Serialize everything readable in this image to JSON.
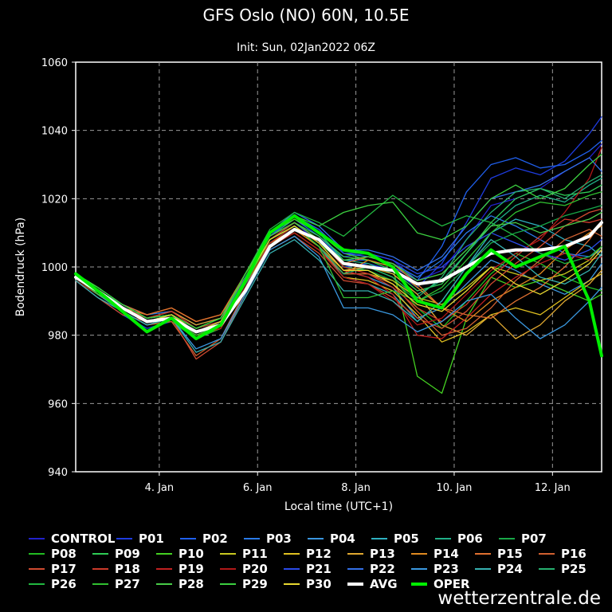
{
  "chart_data": {
    "type": "line",
    "title": "GFS Oslo (NO) 60N, 10.5E",
    "subtitle": "Init: Sun, 02Jan2022 06Z",
    "xlabel": "Local time (UTC+1)",
    "ylabel": "Bodendruck (hPa)",
    "ylim": [
      940,
      1060
    ],
    "yticks": [
      940,
      960,
      980,
      1000,
      1020,
      1040,
      1060
    ],
    "xlim": [
      2.3,
      13.0
    ],
    "xticks": [
      {
        "x": 4,
        "label": "4. Jan"
      },
      {
        "x": 6,
        "label": "6. Jan"
      },
      {
        "x": 8,
        "label": "8. Jan"
      },
      {
        "x": 10,
        "label": "10. Jan"
      },
      {
        "x": 12,
        "label": "12. Jan"
      }
    ],
    "grid": true,
    "x": [
      2.3,
      2.75,
      3.25,
      3.75,
      4.25,
      4.75,
      5.25,
      5.75,
      6.25,
      6.75,
      7.25,
      7.75,
      8.25,
      8.75,
      9.25,
      9.75,
      10.25,
      10.75,
      11.25,
      11.75,
      12.25,
      12.75,
      13.0
    ],
    "avg": {
      "name": "AVG",
      "color": "#ffffff",
      "values": [
        997,
        993,
        988,
        984,
        985,
        981,
        983,
        993,
        1006,
        1011,
        1008,
        1001,
        1000,
        999,
        995,
        996,
        1000,
        1004,
        1005,
        1005,
        1006,
        1009,
        1013
      ]
    },
    "oper": {
      "name": "OPER",
      "color": "#00ee00",
      "values": [
        998,
        993,
        987,
        981,
        985,
        979,
        983,
        996,
        1010,
        1015,
        1010,
        1005,
        1004,
        1000,
        990,
        988,
        998,
        1005,
        1000,
        1003,
        1006,
        990,
        974
      ]
    },
    "series": [
      {
        "name": "CONTROL",
        "color": "#2222cc",
        "values": [
          997,
          992,
          987,
          983,
          985,
          980,
          983,
          997,
          1009,
          1013,
          1007,
          1003,
          1004,
          1002,
          996,
          999,
          1008,
          1018,
          1020,
          1023,
          1028,
          1032,
          1036
        ]
      },
      {
        "name": "P01",
        "color": "#1e3ce0",
        "values": [
          996,
          991,
          986,
          982,
          984,
          979,
          982,
          994,
          1008,
          1013,
          1008,
          1000,
          1001,
          999,
          994,
          1001,
          1013,
          1026,
          1029,
          1027,
          1031,
          1039,
          1044
        ]
      },
      {
        "name": "P02",
        "color": "#2060ee",
        "values": [
          997,
          993,
          988,
          985,
          986,
          982,
          984,
          996,
          1009,
          1014,
          1009,
          1002,
          1002,
          1000,
          996,
          1006,
          1022,
          1030,
          1032,
          1029,
          1030,
          1034,
          1037
        ]
      },
      {
        "name": "P03",
        "color": "#2a7ae8",
        "values": [
          998,
          994,
          989,
          986,
          987,
          983,
          985,
          998,
          1010,
          1015,
          1011,
          1004,
          1003,
          1001,
          997,
          1002,
          1010,
          1015,
          1012,
          1008,
          1004,
          1003,
          1005
        ]
      },
      {
        "name": "P04",
        "color": "#3a96e0",
        "values": [
          996,
          992,
          987,
          983,
          985,
          980,
          983,
          995,
          1007,
          1012,
          1007,
          999,
          997,
          994,
          985,
          988,
          995,
          1002,
          999,
          995,
          992,
          996,
          1001
        ]
      },
      {
        "name": "P05",
        "color": "#2eb0c0",
        "values": [
          997,
          992,
          988,
          984,
          986,
          981,
          984,
          996,
          1008,
          1012,
          1006,
          997,
          995,
          992,
          984,
          990,
          1000,
          1010,
          1014,
          1012,
          1008,
          1006,
          1003
        ]
      },
      {
        "name": "P06",
        "color": "#20b088",
        "values": [
          998,
          993,
          989,
          985,
          986,
          982,
          984,
          997,
          1009,
          1014,
          1010,
          1002,
          1001,
          998,
          992,
          996,
          1004,
          1012,
          1018,
          1021,
          1019,
          1024,
          1026
        ]
      },
      {
        "name": "P07",
        "color": "#18a848",
        "values": [
          997,
          993,
          988,
          984,
          985,
          980,
          983,
          996,
          1008,
          1013,
          1008,
          1000,
          999,
          996,
          990,
          993,
          1000,
          1007,
          1010,
          1012,
          1015,
          1017,
          1018
        ]
      },
      {
        "name": "P08",
        "color": "#22bb22",
        "values": [
          996,
          992,
          987,
          983,
          984,
          979,
          982,
          995,
          1007,
          1012,
          1007,
          1001,
          1000,
          997,
          988,
          982,
          990,
          998,
          1004,
          1001,
          997,
          994,
          993
        ]
      },
      {
        "name": "P09",
        "color": "#2ecc55",
        "values": [
          997,
          993,
          988,
          985,
          986,
          981,
          983,
          996,
          1008,
          1013,
          1009,
          1003,
          1002,
          999,
          993,
          995,
          1004,
          1013,
          1020,
          1023,
          1021,
          1022,
          1024
        ]
      },
      {
        "name": "P10",
        "color": "#44d022",
        "values": [
          998,
          994,
          989,
          985,
          986,
          982,
          985,
          997,
          1010,
          1014,
          1010,
          1004,
          1002,
          1000,
          968,
          963,
          985,
          997,
          994,
          996,
          993,
          990,
          992
        ]
      },
      {
        "name": "P11",
        "color": "#c8c820",
        "values": [
          997,
          993,
          988,
          984,
          986,
          981,
          983,
          995,
          1006,
          1011,
          1006,
          998,
          998,
          996,
          991,
          989,
          994,
          1000,
          998,
          996,
          998,
          1002,
          1006
        ]
      },
      {
        "name": "P12",
        "color": "#e0c020",
        "values": [
          997,
          992,
          987,
          983,
          985,
          980,
          982,
          994,
          1006,
          1010,
          1005,
          997,
          996,
          993,
          986,
          978,
          981,
          986,
          988,
          986,
          991,
          996,
          998
        ]
      },
      {
        "name": "P13",
        "color": "#e0a830",
        "values": [
          996,
          992,
          988,
          985,
          987,
          983,
          985,
          996,
          1007,
          1011,
          1006,
          999,
          1000,
          998,
          992,
          983,
          980,
          986,
          979,
          983,
          990,
          995,
          999
        ]
      },
      {
        "name": "P14",
        "color": "#e08a20",
        "values": [
          997,
          993,
          988,
          986,
          988,
          984,
          986,
          997,
          1007,
          1011,
          1006,
          998,
          1002,
          1000,
          994,
          988,
          984,
          990,
          994,
          998,
          1005,
          1010,
          1012
        ]
      },
      {
        "name": "P15",
        "color": "#e07030",
        "values": [
          998,
          993,
          989,
          986,
          988,
          984,
          986,
          998,
          1009,
          1013,
          1008,
          1001,
          1003,
          1001,
          995,
          988,
          986,
          985,
          990,
          994,
          1000,
          1008,
          1013
        ]
      },
      {
        "name": "P16",
        "color": "#d06030",
        "values": [
          997,
          992,
          987,
          983,
          984,
          974,
          979,
          993,
          1006,
          1010,
          1005,
          998,
          998,
          995,
          987,
          980,
          982,
          988,
          996,
          1002,
          1008,
          1011,
          1009
        ]
      },
      {
        "name": "P17",
        "color": "#d04a30",
        "values": [
          996,
          991,
          986,
          984,
          985,
          973,
          978,
          992,
          1005,
          1009,
          1004,
          996,
          995,
          991,
          985,
          982,
          987,
          995,
          1001,
          1006,
          1012,
          1016,
          1017
        ]
      },
      {
        "name": "P18",
        "color": "#cc3a2a",
        "values": [
          997,
          992,
          988,
          985,
          987,
          982,
          984,
          996,
          1008,
          1013,
          1008,
          1000,
          998,
          994,
          988,
          984,
          989,
          997,
          1003,
          1009,
          1014,
          1013,
          1014
        ]
      },
      {
        "name": "P19",
        "color": "#c02020",
        "values": [
          997,
          993,
          988,
          984,
          986,
          981,
          983,
          995,
          1007,
          1012,
          1007,
          999,
          997,
          992,
          980,
          979,
          985,
          992,
          997,
          1001,
          1004,
          1002,
          1003
        ]
      },
      {
        "name": "P20",
        "color": "#b01818",
        "values": [
          996,
          992,
          987,
          983,
          985,
          980,
          982,
          994,
          1006,
          1010,
          1005,
          997,
          995,
          990,
          983,
          985,
          992,
          999,
          1004,
          1008,
          1016,
          1026,
          1035
        ]
      },
      {
        "name": "P21",
        "color": "#2a4ae8",
        "values": [
          998,
          993,
          989,
          985,
          986,
          981,
          984,
          997,
          1009,
          1015,
          1011,
          1004,
          1004,
          1002,
          998,
          1000,
          1006,
          1010,
          1007,
          1004,
          1002,
          1005,
          1008
        ]
      },
      {
        "name": "P22",
        "color": "#3370e8",
        "values": [
          997,
          993,
          988,
          984,
          986,
          981,
          984,
          996,
          1010,
          1016,
          1012,
          1005,
          1005,
          1003,
          999,
          1003,
          1012,
          1020,
          1022,
          1024,
          1028,
          1032,
          1028
        ]
      },
      {
        "name": "P23",
        "color": "#3a98e0",
        "values": [
          997,
          992,
          987,
          983,
          985,
          976,
          979,
          992,
          1005,
          1009,
          1003,
          988,
          988,
          986,
          981,
          984,
          990,
          992,
          985,
          979,
          983,
          990,
          994
        ]
      },
      {
        "name": "P24",
        "color": "#36b0b0",
        "values": [
          996,
          991,
          987,
          983,
          985,
          975,
          978,
          991,
          1004,
          1008,
          1002,
          993,
          993,
          990,
          984,
          990,
          1000,
          1008,
          1003,
          997,
          995,
          999,
          1004
        ]
      },
      {
        "name": "P25",
        "color": "#26b070",
        "values": [
          997,
          992,
          988,
          984,
          986,
          981,
          983,
          996,
          1008,
          1012,
          1006,
          998,
          1000,
          997,
          991,
          997,
          1008,
          1016,
          1022,
          1023,
          1020,
          1025,
          1027
        ]
      },
      {
        "name": "P26",
        "color": "#22b840",
        "values": [
          998,
          993,
          989,
          985,
          986,
          982,
          985,
          998,
          1011,
          1016,
          1013,
          1009,
          1015,
          1021,
          1016,
          1012,
          1015,
          1013,
          1009,
          1004,
          1001,
          1003,
          1006
        ]
      },
      {
        "name": "P27",
        "color": "#30c030",
        "values": [
          997,
          993,
          988,
          984,
          985,
          980,
          983,
          995,
          1008,
          1012,
          1006,
          991,
          991,
          993,
          990,
          994,
          1002,
          1010,
          1016,
          1019,
          1018,
          1021,
          1022
        ]
      },
      {
        "name": "P28",
        "color": "#48cc48",
        "values": [
          997,
          992,
          988,
          984,
          986,
          981,
          983,
          996,
          1009,
          1013,
          1008,
          1002,
          1003,
          1001,
          996,
          998,
          1005,
          1012,
          1013,
          1010,
          1012,
          1014,
          1016
        ]
      },
      {
        "name": "P29",
        "color": "#3cd040",
        "values": [
          998,
          994,
          989,
          985,
          986,
          982,
          985,
          998,
          1010,
          1015,
          1012,
          1016,
          1018,
          1019,
          1010,
          1008,
          1012,
          1020,
          1024,
          1020,
          1023,
          1030,
          1033
        ]
      },
      {
        "name": "P30",
        "color": "#e8d830",
        "values": [
          997,
          993,
          988,
          984,
          986,
          981,
          984,
          996,
          1008,
          1012,
          1007,
          999,
          999,
          995,
          989,
          987,
          993,
          1000,
          995,
          992,
          996,
          1001,
          1005
        ]
      }
    ]
  },
  "legend": {
    "items": [
      {
        "label": "CONTROL",
        "color": "#2222cc"
      },
      {
        "label": "P01",
        "color": "#1e3ce0"
      },
      {
        "label": "P02",
        "color": "#2060ee"
      },
      {
        "label": "P03",
        "color": "#2a7ae8"
      },
      {
        "label": "P04",
        "color": "#3a96e0"
      },
      {
        "label": "P05",
        "color": "#2eb0c0"
      },
      {
        "label": "P06",
        "color": "#20b088"
      },
      {
        "label": "P07",
        "color": "#18a848"
      },
      {
        "label": "P08",
        "color": "#22bb22"
      },
      {
        "label": "P09",
        "color": "#2ecc55"
      },
      {
        "label": "P10",
        "color": "#44d022"
      },
      {
        "label": "P11",
        "color": "#c8c820"
      },
      {
        "label": "P12",
        "color": "#e0c020"
      },
      {
        "label": "P13",
        "color": "#e0a830"
      },
      {
        "label": "P14",
        "color": "#e08a20"
      },
      {
        "label": "P15",
        "color": "#e07030"
      },
      {
        "label": "P16",
        "color": "#d06030"
      },
      {
        "label": "P17",
        "color": "#d04a30"
      },
      {
        "label": "P18",
        "color": "#cc3a2a"
      },
      {
        "label": "P19",
        "color": "#c02020"
      },
      {
        "label": "P20",
        "color": "#b01818"
      },
      {
        "label": "P21",
        "color": "#2a4ae8"
      },
      {
        "label": "P22",
        "color": "#3370e8"
      },
      {
        "label": "P23",
        "color": "#3a98e0"
      },
      {
        "label": "P24",
        "color": "#36b0b0"
      },
      {
        "label": "P25",
        "color": "#26b070"
      },
      {
        "label": "P26",
        "color": "#22b840"
      },
      {
        "label": "P27",
        "color": "#30c030"
      },
      {
        "label": "P28",
        "color": "#48cc48"
      },
      {
        "label": "P29",
        "color": "#3cd040"
      },
      {
        "label": "P30",
        "color": "#e8d830"
      },
      {
        "label": "AVG",
        "color": "#ffffff"
      },
      {
        "label": "OPER",
        "color": "#00ee00"
      }
    ]
  },
  "watermark": "wetterzentrale.de"
}
